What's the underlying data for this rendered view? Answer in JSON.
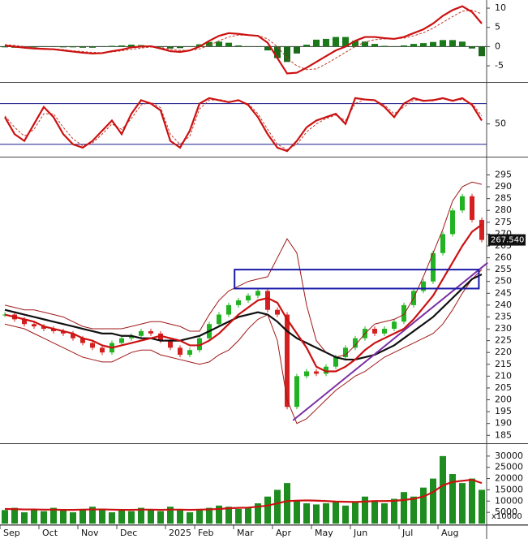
{
  "chart_data": [
    {
      "type": "line",
      "ylim": [
        -9,
        11.7
      ],
      "yticks": [
        10,
        5,
        0,
        -5
      ],
      "hlines": [
        0
      ],
      "series": [
        {
          "style": "histogram",
          "color": "#1a7a1a",
          "values": [
            -0.2,
            -0.3,
            -0.3,
            -0.2,
            -0.1,
            -0.1,
            -0.2,
            -0.2,
            -0.3,
            -0.3,
            -0.1,
            0.2,
            0.3,
            0.5,
            0.4,
            0.2,
            -0.2,
            -0.5,
            -0.4,
            0,
            0.6,
            1.2,
            1.3,
            1,
            0.3,
            0,
            -0.1,
            -1,
            -3,
            -4,
            -1.8,
            0.5,
            1.8,
            2,
            2.5,
            2.5,
            1.5,
            1.3,
            0.7,
            0.2,
            0,
            0.3,
            0.7,
            0.9,
            1.2,
            1.7,
            1.7,
            1.3,
            -0.5,
            -2.5
          ]
        },
        {
          "style": "dashed",
          "color": "#c0392b",
          "values": [
            0.5,
            0.3,
            0,
            -0.3,
            -0.5,
            -0.6,
            -0.8,
            -1.1,
            -1.3,
            -1.5,
            -1.6,
            -1.4,
            -1.1,
            -0.7,
            -0.4,
            -0.1,
            -0.3,
            -0.7,
            -1.0,
            -1.0,
            -0.6,
            0.3,
            1.5,
            2.5,
            3.0,
            3.0,
            2.9,
            2.0,
            0,
            -3,
            -5,
            -6,
            -5.8,
            -4.5,
            -3,
            -1.5,
            0,
            1.2,
            1.8,
            2.0,
            2.0,
            2.2,
            2.8,
            3.6,
            4.8,
            6.3,
            7.8,
            9.2,
            9.5,
            8.5
          ]
        },
        {
          "style": "solid",
          "color": "#cc1111",
          "values": [
            0.3,
            0,
            -0.3,
            -0.5,
            -0.6,
            -0.7,
            -1,
            -1.3,
            -1.6,
            -1.8,
            -1.7,
            -1.2,
            -0.8,
            -0.2,
            0,
            0.1,
            -0.5,
            -1.2,
            -1.4,
            -1.0,
            0,
            1.5,
            2.8,
            3.5,
            3.3,
            3.0,
            2.8,
            1,
            -3,
            -7,
            -6.8,
            -5.5,
            -4,
            -2.5,
            -1,
            0,
            1.5,
            2.5,
            2.5,
            2.2,
            2,
            2.5,
            3.5,
            4.5,
            6,
            8,
            9.5,
            10.5,
            9,
            6
          ]
        }
      ]
    },
    {
      "type": "line",
      "ylim": [
        3,
        107
      ],
      "yticks": [
        50
      ],
      "hlines": [
        80,
        20
      ],
      "series": [
        {
          "style": "dashed",
          "color": "#c0392b",
          "values": [
            62,
            45,
            32,
            42,
            65,
            65,
            45,
            28,
            18,
            22,
            35,
            50,
            42,
            58,
            78,
            82,
            74,
            35,
            20,
            32,
            72,
            85,
            86,
            83,
            84,
            80,
            65,
            42,
            20,
            12,
            20,
            38,
            50,
            58,
            63,
            55,
            80,
            86,
            85,
            78,
            65,
            75,
            85,
            85,
            84,
            87,
            85,
            86,
            80,
            62
          ]
        },
        {
          "style": "solid",
          "color": "#cc1111",
          "values": [
            60,
            35,
            25,
            50,
            75,
            60,
            35,
            20,
            15,
            25,
            40,
            55,
            35,
            65,
            85,
            80,
            70,
            25,
            15,
            40,
            80,
            88,
            85,
            82,
            85,
            78,
            60,
            35,
            15,
            10,
            25,
            45,
            55,
            60,
            65,
            50,
            88,
            86,
            85,
            75,
            60,
            80,
            88,
            84,
            85,
            88,
            84,
            88,
            78,
            55
          ]
        }
      ]
    },
    {
      "type": "candlestick",
      "ylim": [
        182,
        301
      ],
      "yticks": [
        185,
        190,
        195,
        200,
        205,
        210,
        215,
        220,
        225,
        230,
        235,
        240,
        245,
        250,
        255,
        260,
        265,
        270,
        275,
        280,
        285,
        290,
        295
      ],
      "up_color": "#22b322",
      "down_color": "#d42020",
      "values": [
        236,
        234,
        232,
        231,
        230,
        229,
        228,
        226,
        224,
        222,
        220,
        224,
        226,
        227,
        229,
        228,
        225,
        222,
        219,
        221,
        226,
        232,
        236,
        240,
        242,
        244,
        246,
        238,
        236,
        197,
        210,
        212,
        211,
        214,
        218,
        222,
        226,
        230,
        228,
        230,
        233,
        240,
        246,
        250,
        262,
        270,
        280,
        286,
        276,
        267.54
      ],
      "last_label": {
        "value": 267.54,
        "label": "267.540"
      },
      "series": [
        {
          "style": "thin",
          "color": "#a01818",
          "values": [
            240,
            239,
            238,
            238,
            237,
            236,
            235,
            233,
            231,
            230,
            230,
            230,
            230,
            231,
            232,
            233,
            233,
            232,
            231,
            229,
            229,
            236,
            242,
            246,
            248,
            250,
            251,
            252,
            260,
            268,
            262,
            240,
            225,
            220,
            218,
            219,
            223,
            228,
            232,
            233,
            234,
            236,
            243,
            252,
            262,
            272,
            284,
            290,
            292,
            291
          ]
        },
        {
          "style": "thin",
          "color": "#a01818",
          "values": [
            232,
            231,
            230,
            228,
            226,
            224,
            222,
            220,
            218,
            217,
            216,
            216,
            218,
            220,
            221,
            221,
            219,
            218,
            217,
            216,
            215,
            216,
            219,
            221,
            225,
            230,
            234,
            236,
            225,
            200,
            190,
            192,
            196,
            200,
            204,
            207,
            210,
            212,
            215,
            218,
            220,
            222,
            224,
            226,
            228,
            232,
            238,
            245,
            251,
            255
          ]
        },
        {
          "style": "solid",
          "color": "#111111",
          "values": [
            238,
            237,
            236,
            235,
            234,
            233,
            232,
            231,
            230,
            229,
            228,
            228,
            227,
            227,
            226,
            226,
            225,
            225,
            225,
            226,
            227,
            229,
            231,
            233,
            235,
            236,
            237,
            236,
            233,
            229,
            226,
            224,
            222,
            220,
            218,
            217,
            217,
            218,
            219,
            221,
            223,
            226,
            229,
            232,
            235,
            239,
            243,
            247,
            251,
            253
          ]
        },
        {
          "style": "solid",
          "color": "#cc1111",
          "values": [
            236,
            235,
            234,
            233,
            231,
            230,
            229,
            228,
            226,
            225,
            223,
            222,
            223,
            224,
            225,
            226,
            227,
            226,
            225,
            223,
            223,
            225,
            228,
            232,
            236,
            239,
            242,
            243,
            241,
            234,
            228,
            222,
            214,
            212,
            212,
            214,
            217,
            221,
            224,
            226,
            228,
            230,
            234,
            239,
            244,
            251,
            258,
            265,
            271,
            274
          ]
        }
      ],
      "trendline": {
        "color": "#7b2fa6",
        "x": [
          29.6,
          49.6
        ],
        "y": [
          191.3,
          257.9
        ]
      },
      "box": {
        "color": "#1a1aa8",
        "x": [
          23.6,
          48.7
        ],
        "y": [
          247,
          255
        ]
      }
    },
    {
      "type": "bar",
      "ylim": [
        0,
        35000
      ],
      "yticks": [
        5000,
        10000,
        15000,
        20000,
        25000,
        30000
      ],
      "unit_label": "x10000",
      "color": "#1e8c1e",
      "values": [
        6000,
        7000,
        5000,
        6500,
        5500,
        7000,
        6000,
        5000,
        6500,
        7500,
        6000,
        5000,
        6000,
        5500,
        7000,
        6000,
        5500,
        7500,
        6500,
        5000,
        6000,
        7000,
        8000,
        7500,
        6500,
        7000,
        9000,
        12000,
        15000,
        18000,
        10000,
        9000,
        8500,
        9000,
        10000,
        8000,
        9500,
        12000,
        10000,
        9000,
        11000,
        14000,
        12000,
        16000,
        20000,
        30000,
        22000,
        18000,
        20000,
        15000
      ],
      "series": [
        {
          "style": "solid",
          "color": "#cc1111",
          "values": [
            6500,
            6400,
            6300,
            6300,
            6200,
            6200,
            6100,
            6100,
            6200,
            6300,
            6300,
            6200,
            6100,
            6100,
            6200,
            6200,
            6100,
            6200,
            6200,
            6100,
            6200,
            6300,
            6500,
            6800,
            7000,
            7100,
            7500,
            8000,
            9000,
            10000,
            10200,
            10300,
            10200,
            10000,
            9800,
            9700,
            9600,
            9800,
            10000,
            10000,
            10100,
            10500,
            11000,
            12000,
            14000,
            17000,
            18500,
            19000,
            19500,
            18000
          ]
        }
      ],
      "categories": [
        "Sep",
        null,
        null,
        null,
        "Oct",
        null,
        null,
        null,
        "Nov",
        null,
        null,
        null,
        "Dec",
        null,
        null,
        null,
        null,
        "2025",
        null,
        null,
        "Feb",
        null,
        null,
        null,
        "Mar",
        null,
        null,
        null,
        "Apr",
        null,
        null,
        null,
        "May",
        null,
        null,
        null,
        "Jun",
        null,
        null,
        null,
        null,
        "Jul",
        null,
        null,
        null,
        "Aug",
        null,
        null,
        null,
        null
      ]
    }
  ]
}
